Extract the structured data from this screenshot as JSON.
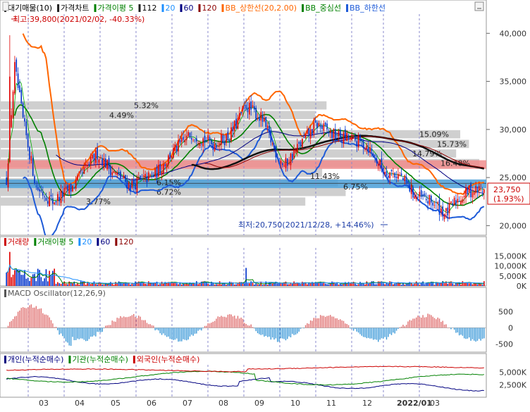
{
  "legend_main": [
    {
      "label": "대기매물(10)",
      "color": "#222222"
    },
    {
      "label": "가격차트",
      "color": "#222222"
    },
    {
      "label": "가격이평 5",
      "color": "#008000"
    },
    {
      "label": "112",
      "color": "#222222"
    },
    {
      "label": "20",
      "color": "#1e90ff"
    },
    {
      "label": "60",
      "color": "#000080"
    },
    {
      "label": "120",
      "color": "#8b0000"
    },
    {
      "label": "BB_상한선(20,2.00)",
      "color": "#ff6600"
    },
    {
      "label": "BB_중심선",
      "color": "#008000"
    },
    {
      "label": "BB_하한선",
      "color": "#1e5bd8"
    }
  ],
  "legend_volume": [
    {
      "label": "거래량",
      "color": "#cc0000"
    },
    {
      "label": "거래이평 5",
      "color": "#008000"
    },
    {
      "label": "20",
      "color": "#1e90ff"
    },
    {
      "label": "60",
      "color": "#000080"
    },
    {
      "label": "120",
      "color": "#8b0000"
    }
  ],
  "legend_macd": [
    {
      "label": "MACD Oscillator(12,26,9)",
      "color": "#555555"
    }
  ],
  "legend_investor": [
    {
      "label": "개인(누적순매수)",
      "color": "#000080"
    },
    {
      "label": "기관(누적순매수)",
      "color": "#008000"
    },
    {
      "label": "외국인(누적순매수)",
      "color": "#cc0000"
    }
  ],
  "annotations": {
    "high": "최고:39,800(2021/02/02, -40.33%)",
    "low": "최저:20,750(2021/12/28, +14.46%)",
    "current_price": "23,750",
    "current_change": "(1.93%)",
    "mid_label_1": "11.43%",
    "mid_label_2": "6.75%"
  },
  "chart_data": [
    {
      "type": "candlestick",
      "panel": "price",
      "y_ticks": [
        "40,000",
        "35,000",
        "30,000",
        "25,000",
        "20,000"
      ],
      "ylim": [
        19000,
        42000
      ],
      "x_ticks": [
        "03",
        "04",
        "05",
        "06",
        "07",
        "08",
        "09",
        "10",
        "11",
        "12",
        "2022/01",
        "03"
      ],
      "volume_profile": [
        {
          "low": 32000,
          "high": 33000,
          "pct": "5.32%"
        },
        {
          "low": 31000,
          "high": 32000,
          "pct": "4.49%"
        },
        {
          "low": 30000,
          "high": 31000,
          "pct": ""
        },
        {
          "low": 29000,
          "high": 30000,
          "pct": "15.09%"
        },
        {
          "low": 28000,
          "high": 29000,
          "pct": "15.73%"
        },
        {
          "low": 27000,
          "high": 28000,
          "pct": "14.79%"
        },
        {
          "low": 26000,
          "high": 27000,
          "pct": "16.48%"
        },
        {
          "low": 25000,
          "high": 26000,
          "pct": ""
        },
        {
          "low": 24000,
          "high": 25000,
          "pct": "6.15%"
        },
        {
          "low": 23000,
          "high": 24000,
          "pct": "6.72%"
        },
        {
          "low": 22000,
          "high": 23000,
          "pct": "3.77%"
        }
      ],
      "highlight_bands": [
        {
          "low": 25900,
          "high": 26800,
          "color": "#f08c8c"
        },
        {
          "low": 23900,
          "high": 24800,
          "color": "#4a9fd8"
        }
      ],
      "high_value": 39800,
      "low_value": 20750,
      "current": 23750,
      "baseline": 24400
    },
    {
      "type": "bar",
      "panel": "volume",
      "y_ticks": [
        "15,000K",
        "10,000K",
        "5,000K",
        "0K"
      ],
      "ylim": [
        0,
        19000
      ]
    },
    {
      "type": "bar",
      "panel": "macd",
      "y_ticks": [
        "500",
        "0",
        "-500"
      ],
      "ylim": [
        -750,
        900
      ]
    },
    {
      "type": "line",
      "panel": "investor",
      "y_ticks": [
        "5,000K",
        "2,500K"
      ],
      "ylim": [
        0,
        6500
      ]
    }
  ]
}
